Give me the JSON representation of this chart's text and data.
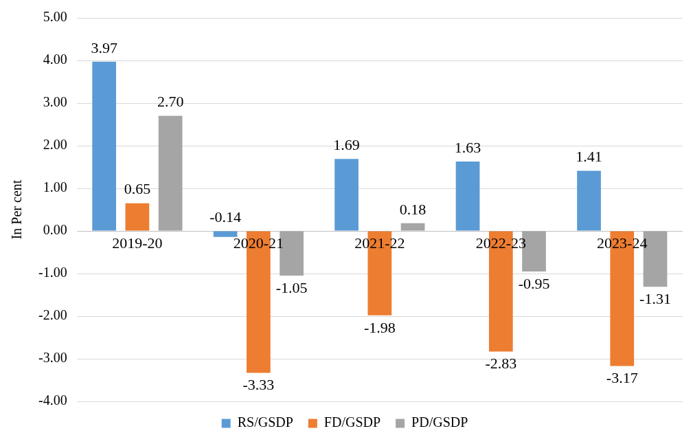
{
  "chart_data": {
    "type": "bar",
    "ylabel": "In Per cent",
    "categories": [
      "2019-20",
      "2020-21",
      "2021-22",
      "2022-23",
      "2023-24"
    ],
    "series": [
      {
        "name": "RS/GSDP",
        "color": "#5b9bd5",
        "values": [
          3.97,
          -0.14,
          1.69,
          1.63,
          1.41
        ],
        "value_labels": [
          "3.97",
          "-0.14",
          "1.69",
          "1.63",
          "1.41"
        ]
      },
      {
        "name": "FD/GSDP",
        "color": "#ed7d31",
        "values": [
          0.65,
          -3.33,
          -1.98,
          -2.83,
          -3.17
        ],
        "value_labels": [
          "0.65",
          "-3.33",
          "-1.98",
          "-2.83",
          "-3.17"
        ]
      },
      {
        "name": "PD/GSDP",
        "color": "#a5a5a5",
        "values": [
          2.7,
          -1.05,
          0.18,
          -0.95,
          -1.31
        ],
        "value_labels": [
          "2.70",
          "-1.05",
          "0.18",
          "-0.95",
          "-1.31"
        ]
      }
    ],
    "ylim": [
      -4,
      5
    ],
    "yticks": [
      {
        "value": -4,
        "label": "-4.00"
      },
      {
        "value": -3,
        "label": "-3.00"
      },
      {
        "value": -2,
        "label": "-2.00"
      },
      {
        "value": -1,
        "label": "-1.00"
      },
      {
        "value": 0,
        "label": "0.00"
      },
      {
        "value": 1,
        "label": "1.00"
      },
      {
        "value": 2,
        "label": "2.00"
      },
      {
        "value": 3,
        "label": "3.00"
      },
      {
        "value": 4,
        "label": "4.00"
      },
      {
        "value": 5,
        "label": "5.00"
      }
    ],
    "grid": "y",
    "legend": "bottom"
  }
}
